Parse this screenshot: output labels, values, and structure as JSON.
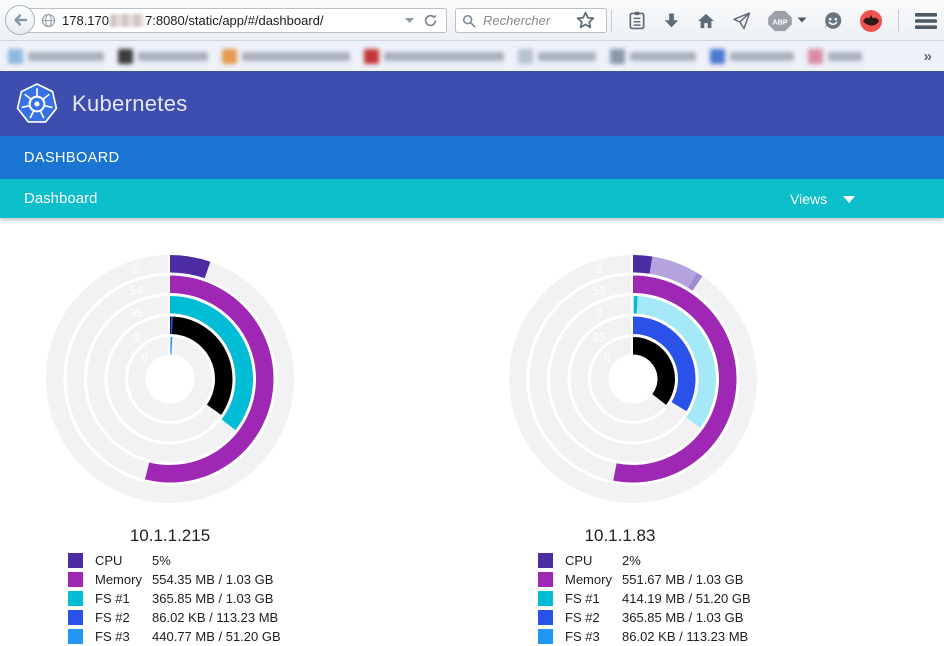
{
  "browser": {
    "toolbar": {
      "url_prefix": "178.170",
      "url_suffix": "7:8080/static/app/#/dashboard/",
      "search_placeholder": "Rechercher",
      "adblock_badge": "ABP"
    },
    "bookmarks_overflow": "»"
  },
  "app": {
    "brand": "Kubernetes",
    "nav": "DASHBOARD",
    "subnav": "Dashboard",
    "views": "Views"
  },
  "colors": {
    "header_bg": "#3e4eae",
    "nav_bg": "#1a75d2",
    "subnav_bg": "#0cbfca",
    "track": "#f2f2f4",
    "cpu": "#4c2ca2",
    "memory": "#9e27b3",
    "fs1": "#00bcd4",
    "fs2": "#2a52e8",
    "fs3": "#2196f3"
  },
  "chart_data": [
    {
      "type": "pie",
      "variant": "concentric-radial-gauge",
      "title": "10.1.1.215",
      "rings": [
        {
          "name": "CPU",
          "percent_label": "5",
          "segments": [
            {
              "start_deg": 0,
              "end_deg": 19,
              "color": "#4c2ca2"
            }
          ]
        },
        {
          "name": "Memory",
          "percent_label": "54",
          "segments": [
            {
              "start_deg": 0,
              "end_deg": 194,
              "color": "#9e27b3"
            }
          ]
        },
        {
          "name": "FS #1",
          "percent_label": "35",
          "segments": [
            {
              "start_deg": 0,
              "end_deg": 128,
              "color": "#00bcd4"
            }
          ]
        },
        {
          "name": "FS #2",
          "percent_label": "0",
          "segments": [
            {
              "start_deg": 0,
              "end_deg": 125,
              "color": "#000000"
            },
            {
              "start_deg": 0.8,
              "end_deg": 2.6,
              "color": "#2a52e8"
            }
          ]
        },
        {
          "name": "FS #3",
          "percent_label": "0",
          "segments": [
            {
              "start_deg": 0.8,
              "end_deg": 3.2,
              "color": "#2196f3"
            }
          ]
        }
      ],
      "legend": [
        {
          "label": "CPU",
          "value": "5%",
          "color": "#4c2ca2"
        },
        {
          "label": "Memory",
          "value": "554.35 MB / 1.03 GB",
          "color": "#9e27b3"
        },
        {
          "label": "FS #1",
          "value": "365.85 MB / 1.03 GB",
          "color": "#00bcd4"
        },
        {
          "label": "FS #2",
          "value": "86.02 KB / 113.23 MB",
          "color": "#2a52e8"
        },
        {
          "label": "FS #3",
          "value": "440.77 MB / 51.20 GB",
          "color": "#2196f3"
        }
      ]
    },
    {
      "type": "pie",
      "variant": "concentric-radial-gauge",
      "title": "10.1.1.83",
      "rings": [
        {
          "name": "CPU",
          "percent_label": "2",
          "segments": [
            {
              "start_deg": 0,
              "end_deg": 9,
              "color": "#4c2ca2"
            },
            {
              "start_deg": 9,
              "end_deg": 31,
              "color": "#b4a3dc"
            },
            {
              "start_deg": 31,
              "end_deg": 34,
              "color": "#9e8bd1"
            }
          ]
        },
        {
          "name": "Memory",
          "percent_label": "53",
          "segments": [
            {
              "start_deg": 0,
              "end_deg": 191,
              "color": "#9e27b3"
            }
          ]
        },
        {
          "name": "FS #1",
          "percent_label": "0",
          "segments": [
            {
              "start_deg": 0,
              "end_deg": 126,
              "color": "#a5e9f8"
            },
            {
              "start_deg": 0.8,
              "end_deg": 3.2,
              "color": "#00bcd4"
            }
          ]
        },
        {
          "name": "FS #2",
          "percent_label": "35",
          "segments": [
            {
              "start_deg": 0,
              "end_deg": 121,
              "color": "#2a52e8"
            }
          ]
        },
        {
          "name": "FS #3",
          "percent_label": "0",
          "segments": [
            {
              "start_deg": 0,
              "end_deg": 128,
              "color": "#000000"
            }
          ]
        }
      ],
      "legend": [
        {
          "label": "CPU",
          "value": "2%",
          "color": "#4c2ca2"
        },
        {
          "label": "Memory",
          "value": "551.67 MB / 1.03 GB",
          "color": "#9e27b3"
        },
        {
          "label": "FS #1",
          "value": "414.19 MB / 51.20 GB",
          "color": "#00bcd4"
        },
        {
          "label": "FS #2",
          "value": "365.85 MB / 1.03 GB",
          "color": "#2a52e8"
        },
        {
          "label": "FS #3",
          "value": "86.02 KB / 113.23 MB",
          "color": "#2196f3"
        }
      ]
    }
  ]
}
